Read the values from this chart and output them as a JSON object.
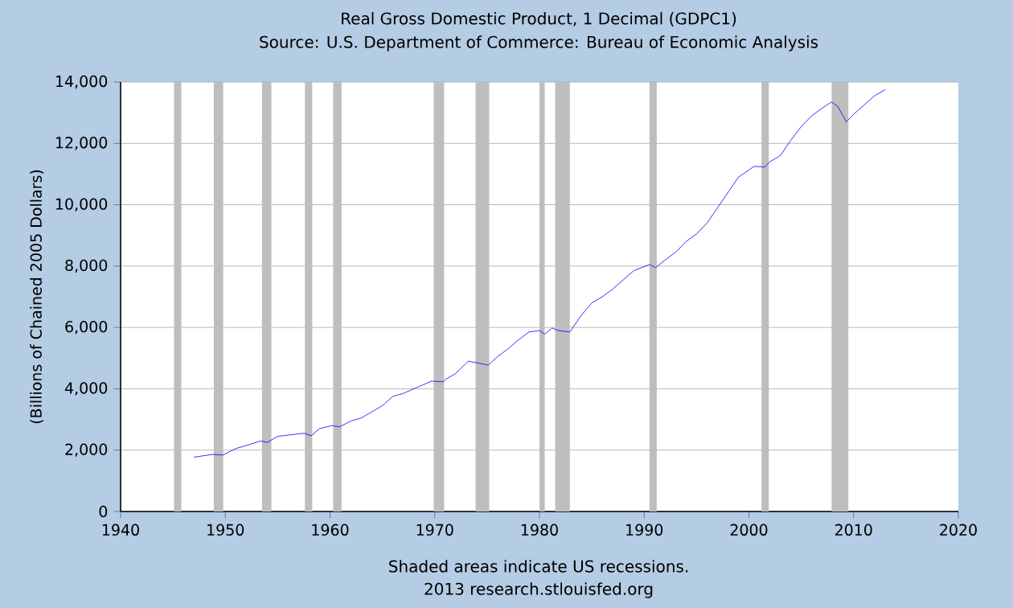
{
  "chart_data": {
    "type": "line",
    "title": "Real Gross Domestic Product, 1 Decimal (GDPC1)",
    "subtitle": "Source: U.S. Department of Commerce: Bureau of Economic Analysis",
    "ylabel": "(Billions of Chained 2005 Dollars)",
    "annotations": [
      "Shaded areas indicate US recessions.",
      "2013 research.stlouisfed.org"
    ],
    "x": [
      1947,
      1948.75,
      1949.75,
      1950,
      1951,
      1952,
      1953.4,
      1954,
      1955,
      1957.5,
      1958.2,
      1959,
      1960.2,
      1960.9,
      1962,
      1963,
      1964,
      1965,
      1966,
      1967,
      1968,
      1969.7,
      1970.8,
      1971,
      1972,
      1973.2,
      1974,
      1975.1,
      1976,
      1977,
      1978,
      1979,
      1980,
      1980.5,
      1981.2,
      1981.8,
      1982.9,
      1984,
      1985,
      1986,
      1987,
      1988,
      1989,
      1990.5,
      1991.1,
      1992,
      1993,
      1994,
      1995,
      1996,
      1997,
      1998,
      1999,
      2000.5,
      2001.5,
      2002,
      2003,
      2004,
      2005,
      2006,
      2007,
      2007.9,
      2008.5,
      2009.3,
      2010,
      2011,
      2012,
      2013
    ],
    "series": [
      {
        "color": "#0000ff",
        "values": [
          1770,
          1860,
          1840,
          1880,
          2050,
          2150,
          2300,
          2250,
          2450,
          2550,
          2470,
          2700,
          2800,
          2760,
          2950,
          3050,
          3250,
          3450,
          3750,
          3850,
          4000,
          4250,
          4230,
          4300,
          4500,
          4900,
          4850,
          4770,
          5050,
          5300,
          5600,
          5850,
          5900,
          5780,
          5980,
          5900,
          5850,
          6400,
          6800,
          7000,
          7250,
          7550,
          7850,
          8050,
          7950,
          8200,
          8450,
          8800,
          9050,
          9400,
          9900,
          10400,
          10900,
          11250,
          11230,
          11400,
          11600,
          12100,
          12550,
          12900,
          13150,
          13350,
          13200,
          12700,
          12950,
          13250,
          13550,
          13750
        ]
      }
    ],
    "xlim": [
      1940,
      2020
    ],
    "xticks": [
      1940,
      1950,
      1960,
      1970,
      1980,
      1990,
      2000,
      2010,
      2020
    ],
    "ylim": [
      0,
      14000
    ],
    "yticks": [
      0,
      {
        "value": 2000,
        "label": "2,000"
      },
      {
        "value": 4000,
        "label": "4,000"
      },
      {
        "value": 6000,
        "label": "6,000"
      },
      {
        "value": 8000,
        "label": "8,000"
      },
      {
        "value": 10000,
        "label": "10,000"
      },
      {
        "value": 12000,
        "label": "12,000"
      },
      {
        "value": 14000,
        "label": "14,000"
      }
    ],
    "grid": "y",
    "bands": [
      {
        "axis": "x",
        "from": 1945.1,
        "to": 1945.8,
        "color": "#bebebe"
      },
      {
        "axis": "x",
        "from": 1948.9,
        "to": 1949.8,
        "color": "#bebebe"
      },
      {
        "axis": "x",
        "from": 1953.5,
        "to": 1954.4,
        "color": "#bebebe"
      },
      {
        "axis": "x",
        "from": 1957.6,
        "to": 1958.3,
        "color": "#bebebe"
      },
      {
        "axis": "x",
        "from": 1960.3,
        "to": 1961.1,
        "color": "#bebebe"
      },
      {
        "axis": "x",
        "from": 1969.9,
        "to": 1970.9,
        "color": "#bebebe"
      },
      {
        "axis": "x",
        "from": 1973.9,
        "to": 1975.2,
        "color": "#bebebe"
      },
      {
        "axis": "x",
        "from": 1980.0,
        "to": 1980.5,
        "color": "#bebebe"
      },
      {
        "axis": "x",
        "from": 1981.5,
        "to": 1982.9,
        "color": "#bebebe"
      },
      {
        "axis": "x",
        "from": 1990.5,
        "to": 1991.2,
        "color": "#bebebe"
      },
      {
        "axis": "x",
        "from": 2001.2,
        "to": 2001.9,
        "color": "#bebebe"
      },
      {
        "axis": "x",
        "from": 2007.9,
        "to": 2009.5,
        "color": "#bebebe"
      }
    ]
  }
}
